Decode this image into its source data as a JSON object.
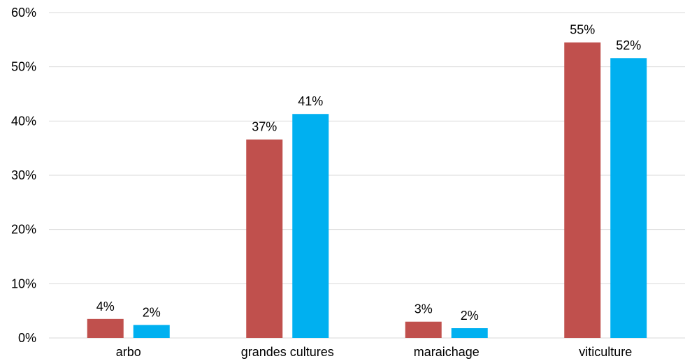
{
  "chart_data": {
    "type": "bar",
    "categories": [
      "arbo",
      "grandes cultures",
      "maraichage",
      "viticulture"
    ],
    "series": [
      {
        "values": [
          3.5,
          36.6,
          3.0,
          54.5
        ],
        "labels": [
          "4%",
          "37%",
          "3%",
          "55%"
        ],
        "color": "#C0504D"
      },
      {
        "values": [
          2.4,
          41.3,
          1.8,
          51.6
        ],
        "labels": [
          "2%",
          "41%",
          "2%",
          "52%"
        ],
        "color": "#00B0F0"
      }
    ],
    "title": "",
    "xlabel": "",
    "ylabel": "",
    "ylim": [
      0,
      60
    ],
    "yticks": [
      0,
      10,
      20,
      30,
      40,
      50,
      60
    ],
    "ytick_labels": [
      "0%",
      "10%",
      "20%",
      "30%",
      "40%",
      "50%",
      "60%"
    ],
    "grid": true,
    "legend": "none",
    "gridline_color": "#D9D9D9"
  }
}
